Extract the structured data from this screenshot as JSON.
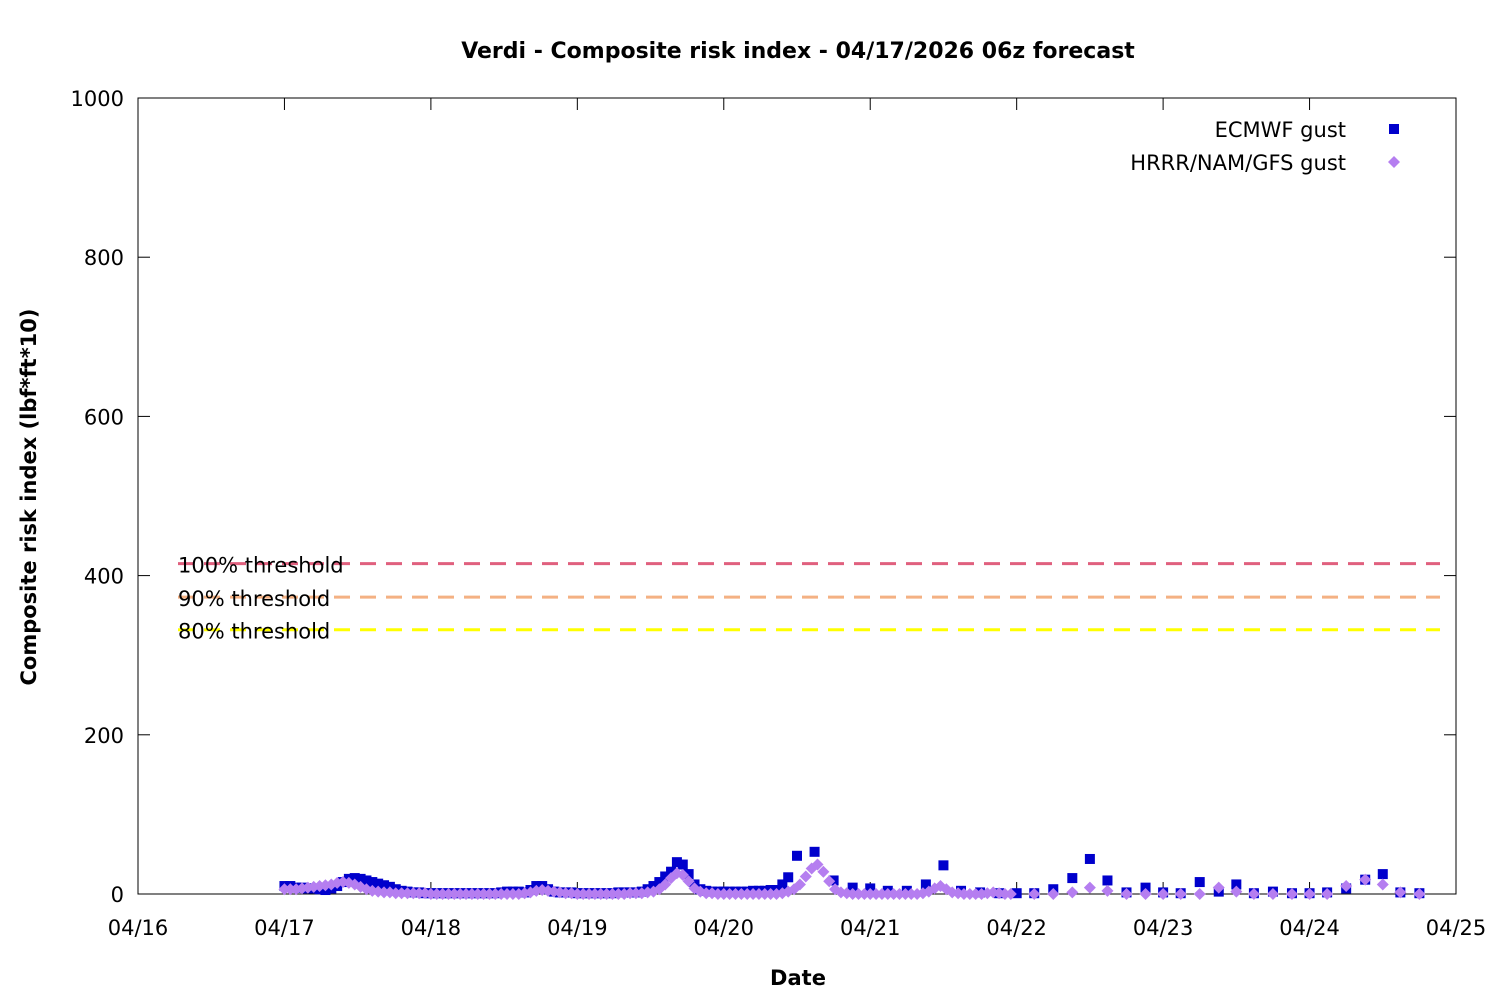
{
  "chart_data": {
    "type": "scatter",
    "title": "Verdi - Composite risk index - 04/17/2026 06z forecast",
    "xlabel": "Date",
    "ylabel": "Composite risk index (lbf*ft*10)",
    "xlim": [
      "04/16",
      "04/25"
    ],
    "ylim": [
      0,
      1000
    ],
    "x_tick_labels": [
      "04/16",
      "04/17",
      "04/18",
      "04/19",
      "04/20",
      "04/21",
      "04/22",
      "04/23",
      "04/24",
      "04/25"
    ],
    "y_ticks": [
      0,
      200,
      400,
      600,
      800,
      1000
    ],
    "grid": false,
    "legend_position": "top-right",
    "thresholds": [
      {
        "label": "100% threshold",
        "value": 415,
        "color": "#e0607e"
      },
      {
        "label": "90% threshold",
        "value": 373,
        "color": "#f4b183"
      },
      {
        "label": "80% threshold",
        "value": 332,
        "color": "#ffff00"
      }
    ],
    "series": [
      {
        "name": "ECMWF gust",
        "marker": "square",
        "color": "#0000cc",
        "points": [
          [
            1.0,
            10
          ],
          [
            1.04,
            10
          ],
          [
            1.08,
            8
          ],
          [
            1.12,
            8
          ],
          [
            1.16,
            7
          ],
          [
            1.2,
            7
          ],
          [
            1.24,
            6
          ],
          [
            1.28,
            5
          ],
          [
            1.32,
            7
          ],
          [
            1.36,
            10
          ],
          [
            1.4,
            15
          ],
          [
            1.44,
            19
          ],
          [
            1.48,
            20
          ],
          [
            1.52,
            19
          ],
          [
            1.56,
            17
          ],
          [
            1.6,
            15
          ],
          [
            1.64,
            13
          ],
          [
            1.68,
            11
          ],
          [
            1.72,
            9
          ],
          [
            1.76,
            6
          ],
          [
            1.8,
            4
          ],
          [
            1.84,
            3
          ],
          [
            1.88,
            2
          ],
          [
            1.92,
            2
          ],
          [
            1.96,
            1
          ],
          [
            2.0,
            1
          ],
          [
            2.04,
            1
          ],
          [
            2.08,
            1
          ],
          [
            2.12,
            1
          ],
          [
            2.16,
            1
          ],
          [
            2.2,
            1
          ],
          [
            2.24,
            1
          ],
          [
            2.28,
            1
          ],
          [
            2.32,
            1
          ],
          [
            2.36,
            1
          ],
          [
            2.4,
            1
          ],
          [
            2.44,
            1
          ],
          [
            2.48,
            2
          ],
          [
            2.52,
            3
          ],
          [
            2.56,
            3
          ],
          [
            2.6,
            3
          ],
          [
            2.64,
            2
          ],
          [
            2.68,
            5
          ],
          [
            2.72,
            10
          ],
          [
            2.76,
            10
          ],
          [
            2.8,
            6
          ],
          [
            2.84,
            3
          ],
          [
            2.88,
            2
          ],
          [
            2.92,
            2
          ],
          [
            2.96,
            2
          ],
          [
            3.0,
            1
          ],
          [
            3.04,
            1
          ],
          [
            3.08,
            1
          ],
          [
            3.12,
            1
          ],
          [
            3.16,
            1
          ],
          [
            3.2,
            1
          ],
          [
            3.24,
            1
          ],
          [
            3.28,
            2
          ],
          [
            3.32,
            2
          ],
          [
            3.36,
            2
          ],
          [
            3.4,
            2
          ],
          [
            3.44,
            3
          ],
          [
            3.48,
            6
          ],
          [
            3.52,
            10
          ],
          [
            3.56,
            15
          ],
          [
            3.6,
            22
          ],
          [
            3.64,
            28
          ],
          [
            3.68,
            40
          ],
          [
            3.72,
            37
          ],
          [
            3.76,
            25
          ],
          [
            3.8,
            12
          ],
          [
            3.84,
            6
          ],
          [
            3.88,
            4
          ],
          [
            3.92,
            3
          ],
          [
            3.96,
            3
          ],
          [
            4.0,
            3
          ],
          [
            4.04,
            3
          ],
          [
            4.08,
            3
          ],
          [
            4.12,
            3
          ],
          [
            4.16,
            3
          ],
          [
            4.2,
            4
          ],
          [
            4.24,
            4
          ],
          [
            4.28,
            4
          ],
          [
            4.32,
            5
          ],
          [
            4.36,
            5
          ],
          [
            4.4,
            12
          ],
          [
            4.44,
            21
          ],
          [
            4.5,
            48
          ],
          [
            4.62,
            53
          ],
          [
            4.75,
            17
          ],
          [
            4.88,
            8
          ],
          [
            5.0,
            7
          ],
          [
            5.12,
            4
          ],
          [
            5.25,
            4
          ],
          [
            5.38,
            12
          ],
          [
            5.5,
            36
          ],
          [
            5.62,
            4
          ],
          [
            5.75,
            2
          ],
          [
            5.88,
            1
          ],
          [
            6.0,
            1
          ],
          [
            6.12,
            1
          ],
          [
            6.25,
            6
          ],
          [
            6.38,
            20
          ],
          [
            6.5,
            44
          ],
          [
            6.62,
            17
          ],
          [
            6.75,
            2
          ],
          [
            6.88,
            8
          ],
          [
            7.0,
            2
          ],
          [
            7.12,
            1
          ],
          [
            7.25,
            15
          ],
          [
            7.38,
            3
          ],
          [
            7.5,
            12
          ],
          [
            7.62,
            1
          ],
          [
            7.75,
            3
          ],
          [
            7.88,
            1
          ],
          [
            8.0,
            1
          ],
          [
            8.12,
            2
          ],
          [
            8.25,
            7
          ],
          [
            8.38,
            18
          ],
          [
            8.5,
            25
          ],
          [
            8.62,
            2
          ],
          [
            8.75,
            1
          ]
        ]
      },
      {
        "name": "HRRR/NAM/GFS gust",
        "marker": "diamond",
        "color": "#b57ef0",
        "points": [
          [
            1.0,
            6
          ],
          [
            1.04,
            6
          ],
          [
            1.08,
            6
          ],
          [
            1.12,
            7
          ],
          [
            1.16,
            8
          ],
          [
            1.2,
            9
          ],
          [
            1.24,
            10
          ],
          [
            1.28,
            11
          ],
          [
            1.32,
            12
          ],
          [
            1.36,
            14
          ],
          [
            1.4,
            15
          ],
          [
            1.44,
            14
          ],
          [
            1.48,
            12
          ],
          [
            1.52,
            9
          ],
          [
            1.56,
            6
          ],
          [
            1.6,
            4
          ],
          [
            1.64,
            3
          ],
          [
            1.68,
            2
          ],
          [
            1.72,
            2
          ],
          [
            1.76,
            1
          ],
          [
            1.8,
            1
          ],
          [
            1.84,
            1
          ],
          [
            1.88,
            1
          ],
          [
            1.92,
            1
          ],
          [
            1.96,
            1
          ],
          [
            2.0,
            0
          ],
          [
            2.04,
            0
          ],
          [
            2.08,
            0
          ],
          [
            2.12,
            0
          ],
          [
            2.16,
            0
          ],
          [
            2.2,
            0
          ],
          [
            2.24,
            0
          ],
          [
            2.28,
            0
          ],
          [
            2.32,
            0
          ],
          [
            2.36,
            0
          ],
          [
            2.4,
            0
          ],
          [
            2.44,
            0
          ],
          [
            2.48,
            0
          ],
          [
            2.52,
            0
          ],
          [
            2.56,
            0
          ],
          [
            2.6,
            0
          ],
          [
            2.64,
            1
          ],
          [
            2.68,
            2
          ],
          [
            2.72,
            4
          ],
          [
            2.76,
            5
          ],
          [
            2.8,
            4
          ],
          [
            2.84,
            3
          ],
          [
            2.88,
            2
          ],
          [
            2.92,
            1
          ],
          [
            2.96,
            1
          ],
          [
            3.0,
            0
          ],
          [
            3.04,
            0
          ],
          [
            3.08,
            0
          ],
          [
            3.12,
            0
          ],
          [
            3.16,
            0
          ],
          [
            3.2,
            0
          ],
          [
            3.24,
            0
          ],
          [
            3.28,
            0
          ],
          [
            3.32,
            0
          ],
          [
            3.36,
            1
          ],
          [
            3.4,
            1
          ],
          [
            3.44,
            1
          ],
          [
            3.48,
            2
          ],
          [
            3.52,
            3
          ],
          [
            3.56,
            6
          ],
          [
            3.6,
            12
          ],
          [
            3.64,
            20
          ],
          [
            3.68,
            26
          ],
          [
            3.72,
            24
          ],
          [
            3.76,
            16
          ],
          [
            3.8,
            7
          ],
          [
            3.84,
            3
          ],
          [
            3.88,
            1
          ],
          [
            3.92,
            1
          ],
          [
            3.96,
            0
          ],
          [
            4.0,
            0
          ],
          [
            4.04,
            0
          ],
          [
            4.08,
            0
          ],
          [
            4.12,
            0
          ],
          [
            4.16,
            0
          ],
          [
            4.2,
            0
          ],
          [
            4.24,
            0
          ],
          [
            4.28,
            0
          ],
          [
            4.32,
            0
          ],
          [
            4.36,
            0
          ],
          [
            4.4,
            1
          ],
          [
            4.44,
            3
          ],
          [
            4.48,
            6
          ],
          [
            4.52,
            12
          ],
          [
            4.56,
            22
          ],
          [
            4.6,
            32
          ],
          [
            4.64,
            37
          ],
          [
            4.68,
            28
          ],
          [
            4.72,
            16
          ],
          [
            4.76,
            6
          ],
          [
            4.8,
            2
          ],
          [
            4.84,
            1
          ],
          [
            4.88,
            0
          ],
          [
            4.92,
            0
          ],
          [
            4.96,
            0
          ],
          [
            5.0,
            0
          ],
          [
            5.04,
            0
          ],
          [
            5.08,
            0
          ],
          [
            5.12,
            0
          ],
          [
            5.16,
            0
          ],
          [
            5.2,
            0
          ],
          [
            5.24,
            0
          ],
          [
            5.28,
            0
          ],
          [
            5.32,
            0
          ],
          [
            5.36,
            1
          ],
          [
            5.4,
            3
          ],
          [
            5.44,
            7
          ],
          [
            5.48,
            10
          ],
          [
            5.52,
            6
          ],
          [
            5.56,
            2
          ],
          [
            5.6,
            1
          ],
          [
            5.64,
            0
          ],
          [
            5.68,
            0
          ],
          [
            5.72,
            0
          ],
          [
            5.76,
            0
          ],
          [
            5.8,
            1
          ],
          [
            5.84,
            2
          ],
          [
            5.88,
            1
          ],
          [
            5.92,
            0
          ],
          [
            5.96,
            0
          ],
          [
            6.12,
            0
          ],
          [
            6.25,
            0
          ],
          [
            6.38,
            2
          ],
          [
            6.5,
            8
          ],
          [
            6.62,
            4
          ],
          [
            6.75,
            0
          ],
          [
            6.88,
            0
          ],
          [
            7.0,
            0
          ],
          [
            7.12,
            0
          ],
          [
            7.25,
            0
          ],
          [
            7.38,
            8
          ],
          [
            7.5,
            3
          ],
          [
            7.62,
            0
          ],
          [
            7.75,
            0
          ],
          [
            7.88,
            0
          ],
          [
            8.0,
            0
          ],
          [
            8.12,
            0
          ],
          [
            8.25,
            10
          ],
          [
            8.38,
            18
          ],
          [
            8.5,
            12
          ],
          [
            8.62,
            2
          ],
          [
            8.75,
            0
          ]
        ]
      }
    ]
  }
}
